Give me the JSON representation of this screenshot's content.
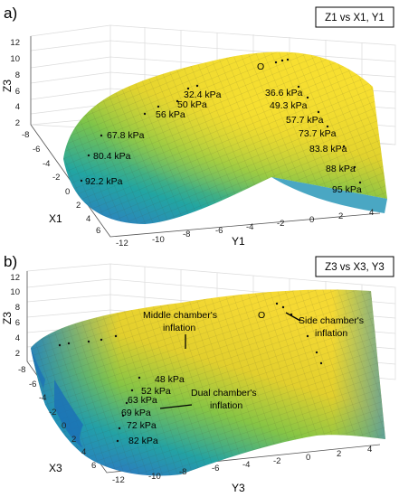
{
  "panels": [
    {
      "letter": "a)",
      "title": "Z1 vs X1, Y1",
      "origin_label": "O",
      "axes": {
        "z_label": "Z3",
        "x_label": "X1",
        "y_label": "Y1",
        "z_ticks": [
          "12",
          "10",
          "8",
          "6",
          "4",
          "2"
        ],
        "x_ticks": [
          "-8",
          "-6",
          "-4",
          "-2",
          "0",
          "2",
          "4",
          "6",
          "8"
        ],
        "y_ticks": [
          "-12",
          "-10",
          "-8",
          "-6",
          "-4",
          "-2",
          "0",
          "2",
          "4"
        ]
      },
      "pressure_labels": [
        "32.4 kPa",
        "36.6 kPa",
        "50 kPa",
        "49.3 kPa",
        "56 kPa",
        "57.7 kPa",
        "67.8 kPa",
        "73.7 kPa",
        "80.4 kPa",
        "83.8 kPa",
        "92.2 kPa",
        "88 kPa",
        "95 kPa"
      ]
    },
    {
      "letter": "b)",
      "title": "Z3 vs X3, Y3",
      "origin_label": "O",
      "axes": {
        "z_label": "Z3",
        "x_label": "X3",
        "y_label": "Y3",
        "z_ticks": [
          "12",
          "10",
          "8",
          "6",
          "4",
          "2"
        ],
        "x_ticks": [
          "-8",
          "-6",
          "-4",
          "-2",
          "0",
          "2",
          "4",
          "6",
          "8"
        ],
        "y_ticks": [
          "-12",
          "-10",
          "-8",
          "-6",
          "-4",
          "-2",
          "0",
          "2",
          "4"
        ]
      },
      "pressure_labels": [
        "48 kPa",
        "52 kPa",
        "63 kPa",
        "69 kPa",
        "72 kPa",
        "82 kPa"
      ],
      "notes": {
        "middle_line1": "Middle chamber's",
        "middle_line2": "inflation",
        "side_line1": "Side chamber's",
        "side_line2": "inflation",
        "dual_line1": "Dual chamber's",
        "dual_line2": "inflation"
      }
    }
  ],
  "chart_data": [
    {
      "type": "surface",
      "title": "Z1 vs X1, Y1",
      "xlabel": "X1",
      "ylabel": "Y1",
      "zlabel": "Z3",
      "xlim": [
        -8,
        8
      ],
      "ylim": [
        -12,
        4
      ],
      "zlim": [
        0,
        12
      ],
      "series": [
        {
          "name": "",
          "pressures_kPa": [
            32.4,
            36.6,
            50,
            49.3,
            56,
            57.7,
            67.8,
            73.7,
            80.4,
            83.8,
            92.2,
            88,
            95
          ]
        }
      ],
      "colormap": [
        "#2f78c8",
        "#20a6a0",
        "#76c34a",
        "#d8cf2c",
        "#f6df2e"
      ]
    },
    {
      "type": "surface",
      "title": "Z3 vs X3, Y3",
      "xlabel": "X3",
      "ylabel": "Y3",
      "zlabel": "Z3",
      "xlim": [
        -8,
        8
      ],
      "ylim": [
        -12,
        4
      ],
      "zlim": [
        0,
        12
      ],
      "series": [
        {
          "name": "",
          "pressures_kPa": [
            48,
            52,
            63,
            69,
            72,
            82
          ]
        }
      ],
      "colormap": [
        "#2f78c8",
        "#20a6a0",
        "#76c34a",
        "#d8cf2c",
        "#f6df2e"
      ]
    }
  ]
}
